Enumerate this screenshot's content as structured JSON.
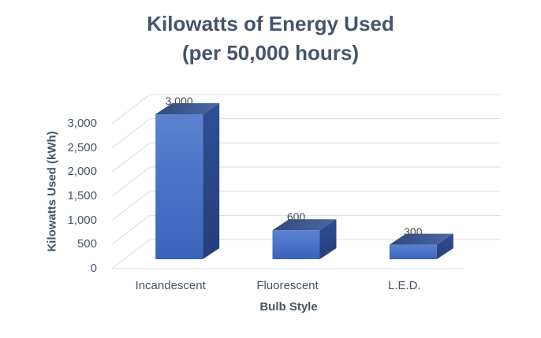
{
  "chart_data": {
    "type": "bar",
    "effect": "3d",
    "title": "Kilowatts of Energy Used (per 50,000 hours)",
    "title_lines": [
      "Kilowatts of Energy Used",
      "(per 50,000 hours)"
    ],
    "categories": [
      "Incandescent",
      "Fluorescent",
      "L.E.D."
    ],
    "values": [
      3000,
      600,
      300
    ],
    "value_labels": [
      "3,000",
      "600",
      "300"
    ],
    "xlabel": "Bulb Style",
    "ylabel": "Kilowatts Used (kWh)",
    "ylim": [
      0,
      3000
    ],
    "yticks": [
      0,
      500,
      1000,
      1500,
      2000,
      2500,
      3000
    ],
    "ytick_labels": [
      "0",
      "500",
      "1,000",
      "1,500",
      "2,000",
      "2,500",
      "3,000"
    ],
    "grid": true,
    "legend": false,
    "colors": {
      "background": "#ffffff",
      "title_text": "#44546A",
      "axis_text": "#44546A",
      "data_label_text": "#4d4d4d",
      "gridline": "#d9dde6",
      "bar_front_top": "#5b81cf",
      "bar_front_bottom": "#3a63bd",
      "bar_side_top": "#2f4e94",
      "bar_side_bottom": "#253f79",
      "bar_top_left": "#2f4a7d",
      "bar_top_right": "#4b69a4"
    }
  }
}
